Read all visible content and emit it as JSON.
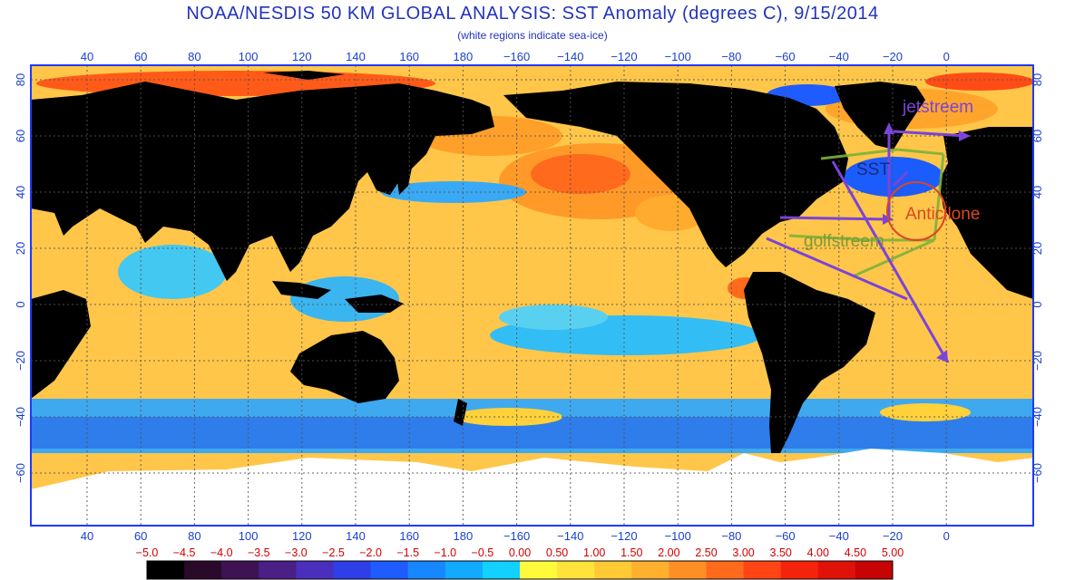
{
  "title": "NOAA/NESDIS 50 KM GLOBAL ANALYSIS: SST Anomaly (degrees C), 9/15/2014",
  "subtitle": "(white regions indicate sea-ice)",
  "lon_ticks": [
    "40",
    "60",
    "80",
    "100",
    "120",
    "140",
    "160",
    "180",
    "−160",
    "−140",
    "−120",
    "−100",
    "−80",
    "−60",
    "−40",
    "−20",
    "0"
  ],
  "lat_ticks": [
    "80",
    "60",
    "40",
    "20",
    "0",
    "−20",
    "−40",
    "−60"
  ],
  "colorbar": {
    "labels": [
      "−5.0",
      "−4.5",
      "−4.0",
      "−3.5",
      "−3.0",
      "−2.5",
      "−2.0",
      "−1.5",
      "−1.0",
      "−0.5",
      "0.00",
      "0.50",
      "1.00",
      "1.50",
      "2.00",
      "2.50",
      "3.00",
      "3.50",
      "4.00",
      "4.50",
      "5.00"
    ],
    "colors": [
      "#000000",
      "#2a0a2a",
      "#3d1354",
      "#4a1f86",
      "#4a2fbd",
      "#2f3fe8",
      "#1e5cff",
      "#1787ff",
      "#11aaff",
      "#12d0ff",
      "#fffb3c",
      "#ffe33a",
      "#ffca33",
      "#ffb02c",
      "#ff9025",
      "#ff6a1c",
      "#ff4514",
      "#f5230c",
      "#df1108",
      "#c70303"
    ]
  },
  "colors": {
    "ocean_base": "#ffc64a",
    "land": "#000000",
    "ice": "#ffffff",
    "frame": "#1f39ff",
    "grid": "#555555",
    "arrow_purple": "#7a44d8",
    "arrow_green": "#7fb13a",
    "anticyclone_red": "#d94720"
  },
  "annotations": {
    "jetstream": "jetstreem",
    "sst": "SST",
    "anticyclone": "Anticilone",
    "gulfstream": "golfstreem"
  }
}
